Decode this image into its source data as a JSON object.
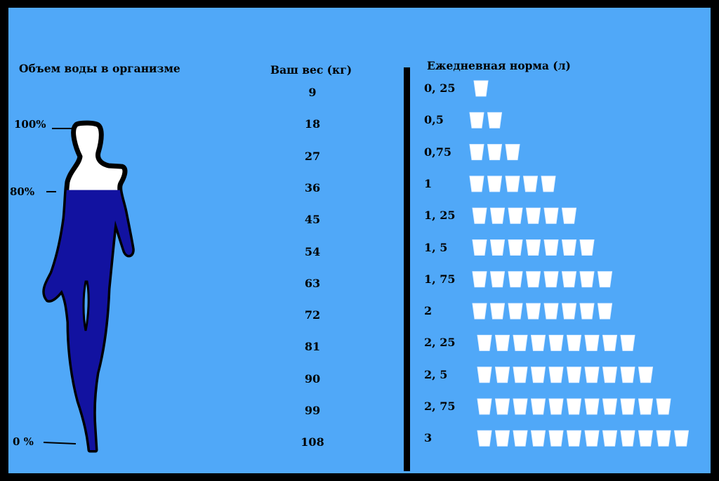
{
  "left_title": "Объем воды в организме",
  "percent_labels": {
    "top": "100%",
    "mid": "80%",
    "bottom": "0 %"
  },
  "body_fill_percent": 80,
  "weight_title": "Ваш вес (кг)",
  "daily_title": "Ежедневная норма (л)",
  "rows": [
    {
      "weight": "9",
      "liters": "0, 25",
      "cups": 1
    },
    {
      "weight": "18",
      "liters": "0,5",
      "cups": 2
    },
    {
      "weight": "27",
      "liters": "0,75",
      "cups": 3
    },
    {
      "weight": "36",
      "liters": "1",
      "cups": 5
    },
    {
      "weight": "45",
      "liters": "1, 25",
      "cups": 6
    },
    {
      "weight": "54",
      "liters": "1, 5",
      "cups": 7
    },
    {
      "weight": "63",
      "liters": "1, 75",
      "cups": 8
    },
    {
      "weight": "72",
      "liters": "2",
      "cups": 8
    },
    {
      "weight": "81",
      "liters": "2, 25",
      "cups": 9
    },
    {
      "weight": "90",
      "liters": "2, 5",
      "cups": 10
    },
    {
      "weight": "99",
      "liters": "2, 75",
      "cups": 11
    },
    {
      "weight": "108",
      "liters": "3",
      "cups": 12
    }
  ],
  "colors": {
    "background": "#50a8f8",
    "water": "#1212a0",
    "cup": "#ffffff",
    "ink": "#000000"
  },
  "icons": {
    "figure": "human-silhouette-icon",
    "cup": "cup-icon"
  }
}
